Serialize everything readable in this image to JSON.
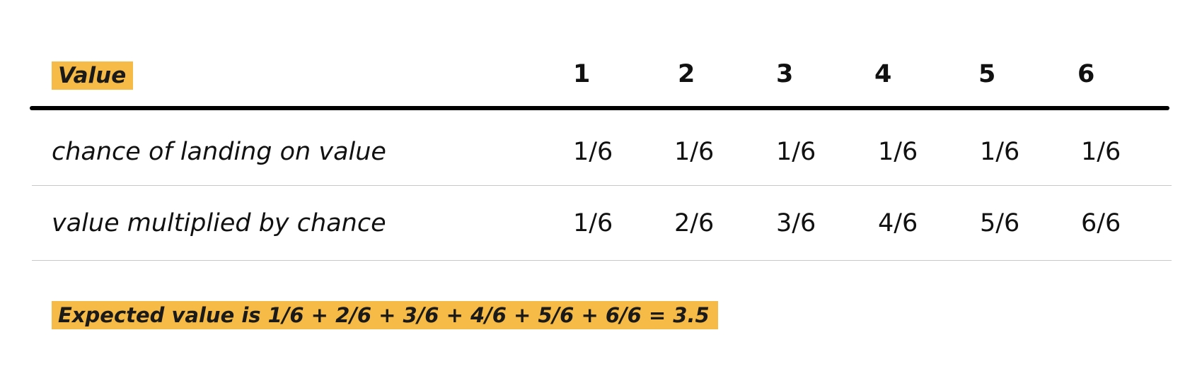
{
  "table": {
    "header_label": "Value",
    "columns": [
      "1",
      "2",
      "3",
      "4",
      "5",
      "6"
    ],
    "rows": [
      {
        "label": "chance of landing on value",
        "cells": [
          "1/6",
          "1/6",
          "1/6",
          "1/6",
          "1/6",
          "1/6"
        ]
      },
      {
        "label": "value multiplied by chance",
        "cells": [
          "1/6",
          "2/6",
          "3/6",
          "4/6",
          "5/6",
          "6/6"
        ]
      }
    ]
  },
  "footer": {
    "expected_value_text": "Expected value is 1/6 + 2/6 + 3/6 + 4/6 + 5/6 + 6/6 = 3.5"
  },
  "colors": {
    "highlight": "#f6bb47",
    "header_rule": "#000000",
    "row_rule": "#c8c8c8"
  }
}
